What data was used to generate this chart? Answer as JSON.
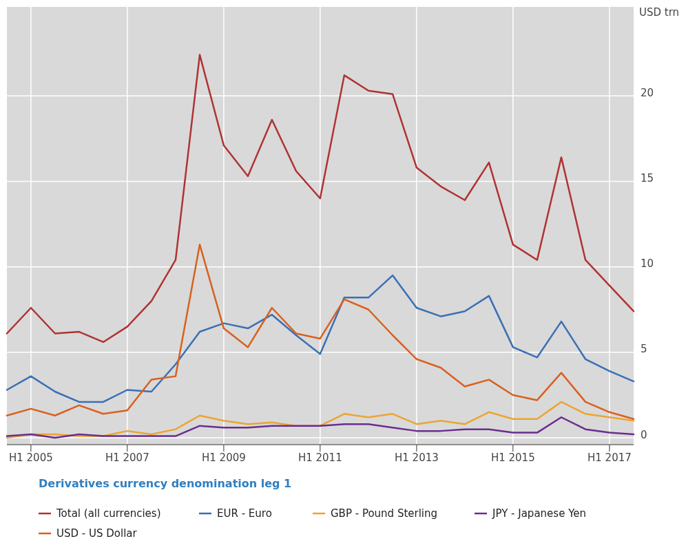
{
  "chart_data": {
    "type": "line",
    "title": "Derivatives currency denomination leg 1",
    "ylabel": "USD trn",
    "x": [
      "2004-12",
      "2005-06",
      "2005-12",
      "2006-06",
      "2006-12",
      "2007-06",
      "2007-12",
      "2008-06",
      "2008-12",
      "2009-06",
      "2009-12",
      "2010-06",
      "2010-12",
      "2011-06",
      "2011-12",
      "2012-06",
      "2012-12",
      "2013-06",
      "2013-12",
      "2014-06",
      "2014-12",
      "2015-06",
      "2015-12",
      "2016-06",
      "2016-12",
      "2017-06",
      "2017-12"
    ],
    "xlim": [
      "2004-12",
      "2017-12"
    ],
    "xticks": [
      {
        "value": "2005-06",
        "label": "H1 2005"
      },
      {
        "value": "2007-06",
        "label": "H1 2007"
      },
      {
        "value": "2009-06",
        "label": "H1 2009"
      },
      {
        "value": "2011-06",
        "label": "H1 2011"
      },
      {
        "value": "2013-06",
        "label": "H1 2013"
      },
      {
        "value": "2015-06",
        "label": "H1 2015"
      },
      {
        "value": "2017-06",
        "label": "H1 2017"
      }
    ],
    "ylim": [
      -0.4,
      25.2
    ],
    "yticks": [
      0,
      5,
      10,
      15,
      20
    ],
    "grid": true,
    "legend": "bottom",
    "marker": "none",
    "line_style": "solid",
    "series": [
      {
        "name": "Total (all currencies)",
        "color": "#b03232",
        "values": [
          6.1,
          7.6,
          6.1,
          6.2,
          5.6,
          6.5,
          8.0,
          10.4,
          22.4,
          17.1,
          15.3,
          18.6,
          15.6,
          14.0,
          21.2,
          20.3,
          20.1,
          15.8,
          14.7,
          13.9,
          16.1,
          11.3,
          10.4,
          16.4,
          10.4,
          8.9,
          7.4
        ]
      },
      {
        "name": "EUR - Euro",
        "color": "#3a6fb5",
        "values": [
          2.8,
          3.6,
          2.7,
          2.1,
          2.1,
          2.8,
          2.7,
          4.3,
          6.2,
          6.7,
          6.4,
          7.2,
          6.0,
          4.9,
          8.2,
          8.2,
          9.5,
          7.6,
          7.1,
          7.4,
          8.3,
          5.3,
          4.7,
          6.8,
          4.6,
          3.9,
          3.3
        ]
      },
      {
        "name": "GBP - Pound Sterling",
        "color": "#eca432",
        "values": [
          0.0,
          0.2,
          0.2,
          0.1,
          0.1,
          0.4,
          0.2,
          0.5,
          1.3,
          1.0,
          0.8,
          0.9,
          0.7,
          0.7,
          1.4,
          1.2,
          1.4,
          0.8,
          1.0,
          0.8,
          1.5,
          1.1,
          1.1,
          2.1,
          1.4,
          1.2,
          1.0
        ]
      },
      {
        "name": "JPY - Japanese Yen",
        "color": "#6a2d8f",
        "values": [
          0.1,
          0.2,
          0.0,
          0.2,
          0.1,
          0.1,
          0.1,
          0.1,
          0.7,
          0.6,
          0.6,
          0.7,
          0.7,
          0.7,
          0.8,
          0.8,
          0.6,
          0.4,
          0.4,
          0.5,
          0.5,
          0.3,
          0.3,
          1.2,
          0.5,
          0.3,
          0.2
        ]
      },
      {
        "name": "USD - US Dollar",
        "color": "#d9601e",
        "values": [
          1.3,
          1.7,
          1.3,
          1.9,
          1.4,
          1.6,
          3.4,
          3.6,
          11.3,
          6.4,
          5.3,
          7.6,
          6.1,
          5.8,
          8.1,
          7.5,
          6.0,
          4.6,
          4.1,
          3.0,
          3.4,
          2.5,
          2.2,
          3.8,
          2.1,
          1.5,
          1.1
        ]
      }
    ]
  }
}
